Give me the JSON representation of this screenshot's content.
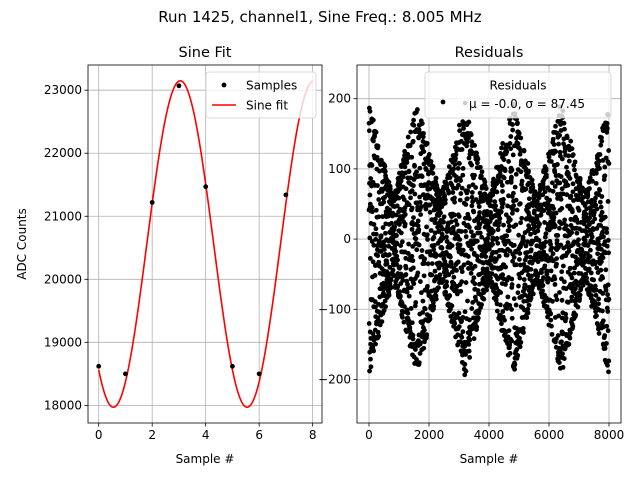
{
  "figure": {
    "suptitle": "Run 1425, channel1, Sine Freq.: 8.005 MHz"
  },
  "chart_data": [
    {
      "type": "line",
      "title": "Sine Fit",
      "xlabel": "Sample #",
      "ylabel": "ADC Counts",
      "xlim": [
        -0.4,
        8.35
      ],
      "ylim": [
        17720,
        23400
      ],
      "xticks": [
        0,
        2,
        4,
        6,
        8
      ],
      "yticks": [
        18000,
        19000,
        20000,
        21000,
        22000,
        23000
      ],
      "grid": true,
      "legend_position": "top-right",
      "series": [
        {
          "name": "Samples",
          "kind": "scatter",
          "color": "#000000",
          "x": [
            0,
            1,
            2,
            3,
            4,
            5,
            6,
            7
          ],
          "y": [
            18620,
            18500,
            21220,
            23070,
            21470,
            18620,
            18500,
            21340
          ]
        },
        {
          "name": "Sine fit",
          "kind": "line",
          "color": "#ff0000",
          "model": {
            "amplitude": 2590,
            "offset": 20560,
            "period": 5,
            "phase_sample": 0.55
          }
        }
      ]
    },
    {
      "type": "scatter",
      "title": "Residuals",
      "xlabel": "Sample #",
      "ylabel": "",
      "xlim": [
        -400,
        8400
      ],
      "ylim": [
        -262,
        248
      ],
      "xticks": [
        0,
        2000,
        4000,
        6000,
        8000
      ],
      "yticks": [
        -200,
        -100,
        0,
        100,
        200
      ],
      "grid": true,
      "legend_position": "top-right",
      "legend": {
        "title": "Residuals",
        "label": "μ = -0.0, σ = 87.45"
      },
      "series": [
        {
          "name": "Residuals",
          "color": "#000000",
          "n_points": 8000,
          "mean": -0.0,
          "sigma": 87.45,
          "envelope_period": 1600,
          "max": 220,
          "min": -240
        }
      ]
    }
  ]
}
